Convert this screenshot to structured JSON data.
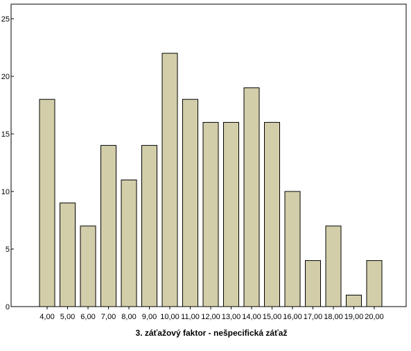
{
  "chart_data": {
    "type": "bar",
    "title": "",
    "xlabel": "3. záťažový faktor - nešpecifická záťaž",
    "ylabel": "",
    "categories": [
      "4,00",
      "5,00",
      "6,00",
      "7,00",
      "8,00",
      "9,00",
      "10,00",
      "11,00",
      "12,00",
      "13,00",
      "14,00",
      "15,00",
      "16,00",
      "17,00",
      "18,00",
      "19,00",
      "20,00"
    ],
    "values": [
      18,
      9,
      7,
      14,
      11,
      14,
      22,
      18,
      16,
      16,
      19,
      16,
      10,
      4,
      7,
      1,
      4
    ],
    "ylim": [
      0,
      25
    ],
    "yticks": [
      "0",
      "5",
      "10",
      "15",
      "20",
      "25"
    ],
    "grid": false,
    "legend": "none",
    "colors": {
      "bar_fill": "#d3ceaa",
      "bar_stroke": "#000000",
      "plot_background": "#ffffff",
      "frame": "#000000"
    }
  }
}
